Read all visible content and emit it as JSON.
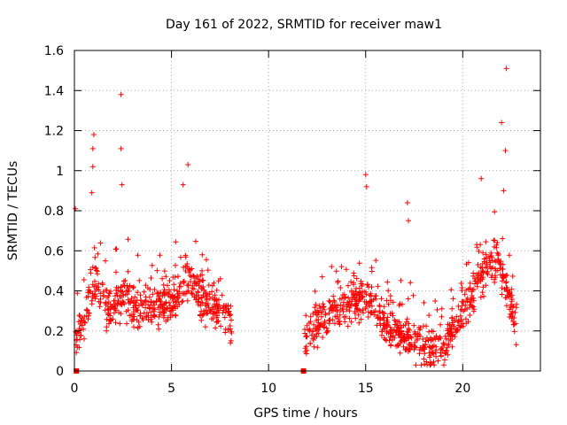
{
  "chart_data": {
    "type": "scatter",
    "title": "Day 161 of 2022, SRMTID for receiver maw1",
    "xlabel": "GPS time / hours",
    "ylabel": "SRMTID / TECUs",
    "xlim": [
      0,
      24
    ],
    "ylim": [
      0,
      1.6
    ],
    "x_ticks": [
      0,
      5,
      10,
      15,
      20
    ],
    "x_tick_labels": [
      "0",
      "5",
      "10",
      "15",
      "20"
    ],
    "y_ticks": [
      0,
      0.2,
      0.4,
      0.6,
      0.8,
      1,
      1.2,
      1.4,
      1.6
    ],
    "y_tick_labels": [
      "0",
      "0.2",
      "0.4",
      "0.6",
      "0.8",
      "1",
      "1.2",
      "1.4",
      "1.6"
    ],
    "grid": true,
    "marker": "plus",
    "series_color": "#ff0000",
    "segments": [
      {
        "x_start": 0.05,
        "x_end": 8.1,
        "density_per_hour": 70,
        "base": 0.27,
        "spread": 0.13
      },
      {
        "x_start": 11.85,
        "x_end": 22.8,
        "density_per_hour": 70,
        "base": 0.22,
        "spread": 0.12
      }
    ],
    "envelope": [
      {
        "x": 0.0,
        "y": 0.18
      },
      {
        "x": 0.5,
        "y": 0.22
      },
      {
        "x": 1.0,
        "y": 0.45
      },
      {
        "x": 1.5,
        "y": 0.33
      },
      {
        "x": 2.0,
        "y": 0.3
      },
      {
        "x": 2.5,
        "y": 0.38
      },
      {
        "x": 3.0,
        "y": 0.3
      },
      {
        "x": 4.0,
        "y": 0.32
      },
      {
        "x": 5.0,
        "y": 0.33
      },
      {
        "x": 5.8,
        "y": 0.45
      },
      {
        "x": 6.5,
        "y": 0.36
      },
      {
        "x": 7.5,
        "y": 0.3
      },
      {
        "x": 8.1,
        "y": 0.25
      },
      {
        "x": 11.9,
        "y": 0.17
      },
      {
        "x": 12.5,
        "y": 0.22
      },
      {
        "x": 13.5,
        "y": 0.32
      },
      {
        "x": 14.5,
        "y": 0.35
      },
      {
        "x": 15.2,
        "y": 0.36
      },
      {
        "x": 16.0,
        "y": 0.22
      },
      {
        "x": 17.0,
        "y": 0.17
      },
      {
        "x": 18.0,
        "y": 0.1
      },
      {
        "x": 19.0,
        "y": 0.12
      },
      {
        "x": 20.0,
        "y": 0.28
      },
      {
        "x": 21.0,
        "y": 0.48
      },
      {
        "x": 21.8,
        "y": 0.55
      },
      {
        "x": 22.3,
        "y": 0.4
      },
      {
        "x": 22.8,
        "y": 0.2
      }
    ],
    "outliers": [
      {
        "x": 0.05,
        "y": 0.81
      },
      {
        "x": 0.9,
        "y": 0.89
      },
      {
        "x": 0.95,
        "y": 1.11
      },
      {
        "x": 1.0,
        "y": 1.18
      },
      {
        "x": 0.95,
        "y": 1.02
      },
      {
        "x": 2.4,
        "y": 1.38
      },
      {
        "x": 2.4,
        "y": 1.11
      },
      {
        "x": 2.45,
        "y": 0.93
      },
      {
        "x": 5.85,
        "y": 1.03
      },
      {
        "x": 5.6,
        "y": 0.93
      },
      {
        "x": 15.0,
        "y": 0.98
      },
      {
        "x": 15.05,
        "y": 0.92
      },
      {
        "x": 17.15,
        "y": 0.84
      },
      {
        "x": 17.2,
        "y": 0.75
      },
      {
        "x": 20.95,
        "y": 0.96
      },
      {
        "x": 22.0,
        "y": 1.24
      },
      {
        "x": 22.2,
        "y": 1.1
      },
      {
        "x": 22.25,
        "y": 1.51
      },
      {
        "x": 22.1,
        "y": 0.9
      }
    ],
    "zero_markers": [
      {
        "x": 0.1,
        "y": 0.0
      },
      {
        "x": 11.8,
        "y": 0.0
      }
    ]
  }
}
